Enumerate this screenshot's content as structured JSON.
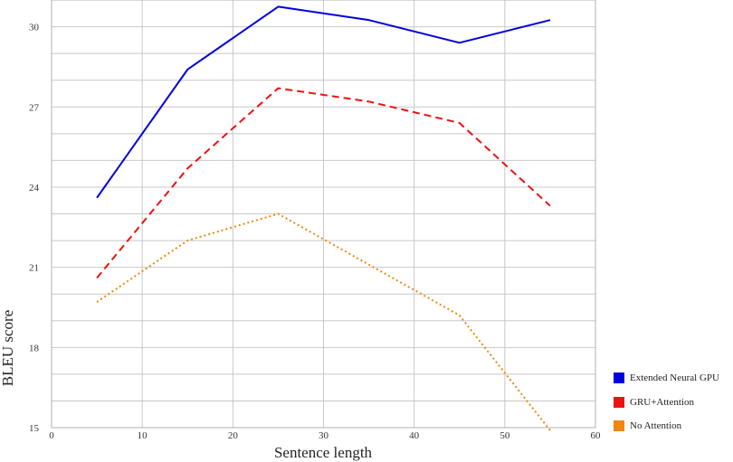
{
  "chart_data": {
    "type": "line",
    "title": "",
    "xlabel": "Sentence length",
    "ylabel": "BLEU score",
    "xlim": [
      0,
      60
    ],
    "ylim": [
      15,
      31
    ],
    "xticks": [
      0,
      10,
      20,
      30,
      40,
      50,
      60
    ],
    "yticks": [
      15,
      18,
      21,
      24,
      27,
      30
    ],
    "grid": true,
    "legend_position": "bottom-right",
    "series": [
      {
        "name": "Extended Neural GPU",
        "color": "#0000dd",
        "style": "solid",
        "x": [
          5,
          15,
          25,
          35,
          45,
          55
        ],
        "y": [
          23.6,
          28.4,
          30.75,
          30.25,
          29.4,
          30.25
        ]
      },
      {
        "name": "GRU+Attention",
        "color": "#ee1111",
        "style": "dashed",
        "x": [
          5,
          15,
          25,
          35,
          45,
          55
        ],
        "y": [
          20.6,
          24.7,
          27.7,
          27.2,
          26.4,
          23.3
        ]
      },
      {
        "name": "No Attention",
        "color": "#ee8811",
        "style": "dotted",
        "x": [
          5,
          15,
          25,
          35,
          45,
          55
        ],
        "y": [
          19.7,
          22.0,
          23.0,
          21.1,
          19.2,
          14.9
        ]
      }
    ]
  }
}
